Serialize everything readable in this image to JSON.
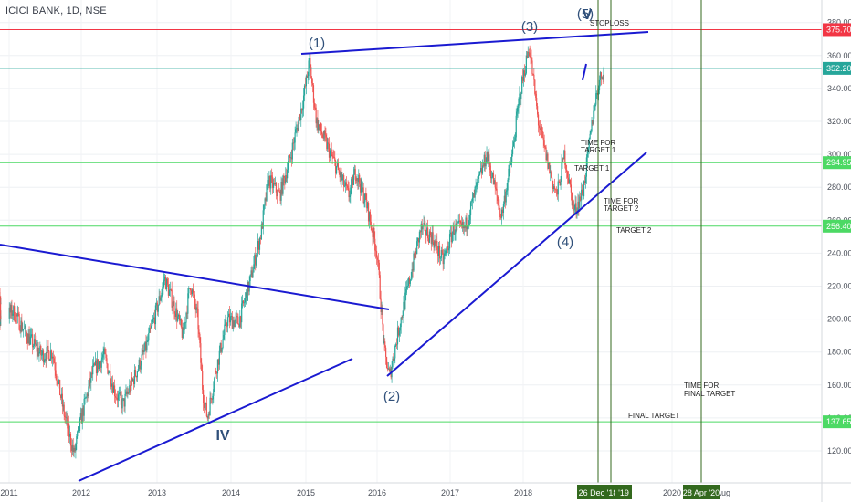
{
  "header": {
    "symbol": "ICICI BANK, 1D, NSE"
  },
  "chart_data": {
    "type": "candlestick",
    "y_ticks": [
      120,
      140,
      160,
      180,
      200,
      220,
      240,
      260,
      280,
      300,
      320,
      340,
      360,
      380
    ],
    "x_ticks": [
      "2011",
      "2012",
      "2013",
      "2014",
      "2015",
      "2016",
      "2017",
      "2018",
      "2020",
      "Aug"
    ],
    "price_levels": [
      {
        "value": 375.7,
        "label": "375.70",
        "color": "#f23645",
        "kind": "stoploss"
      },
      {
        "value": 352.2,
        "label": "352.20",
        "color": "#26a69a",
        "kind": "last-price"
      },
      {
        "value": 294.95,
        "label": "294.95",
        "color": "#4cd964",
        "kind": "target-1"
      },
      {
        "value": 256.4,
        "label": "256.40",
        "color": "#4cd964",
        "kind": "target-2"
      },
      {
        "value": 137.65,
        "label": "137.65",
        "color": "#4cd964",
        "kind": "final-target"
      }
    ],
    "date_markers": [
      "26 Dec '18",
      "'19",
      "28 Apr '20"
    ],
    "wave_labels": [
      "(1)",
      "(2)",
      "(3)",
      "(4)",
      "(5)",
      "V",
      "IV"
    ],
    "annotations": [
      "STOPLOSS",
      "TIME FOR",
      "TARGET 1",
      "TARGET 1",
      "TIME FOR",
      "TARGET 2",
      "TARGET 2",
      "FINAL TARGET",
      "TIME FOR",
      "FINAL TARGET"
    ],
    "price_path": [
      [
        2010.75,
        214
      ],
      [
        2010.9,
        200
      ],
      [
        2011.05,
        205
      ],
      [
        2011.25,
        190
      ],
      [
        2011.45,
        178
      ],
      [
        2011.6,
        180
      ],
      [
        2011.75,
        145
      ],
      [
        2011.82,
        132
      ],
      [
        2011.9,
        118
      ],
      [
        2012.0,
        140
      ],
      [
        2012.15,
        168
      ],
      [
        2012.3,
        178
      ],
      [
        2012.45,
        155
      ],
      [
        2012.55,
        148
      ],
      [
        2012.7,
        165
      ],
      [
        2012.85,
        182
      ],
      [
        2013.05,
        215
      ],
      [
        2013.1,
        225
      ],
      [
        2013.25,
        205
      ],
      [
        2013.35,
        190
      ],
      [
        2013.45,
        222
      ],
      [
        2013.55,
        200
      ],
      [
        2013.62,
        155
      ],
      [
        2013.68,
        140
      ],
      [
        2013.8,
        170
      ],
      [
        2013.95,
        200
      ],
      [
        2014.1,
        198
      ],
      [
        2014.25,
        222
      ],
      [
        2014.4,
        252
      ],
      [
        2014.5,
        285
      ],
      [
        2014.65,
        275
      ],
      [
        2014.8,
        300
      ],
      [
        2014.95,
        330
      ],
      [
        2015.05,
        356
      ],
      [
        2015.15,
        320
      ],
      [
        2015.3,
        305
      ],
      [
        2015.45,
        290
      ],
      [
        2015.6,
        275
      ],
      [
        2015.7,
        290
      ],
      [
        2015.85,
        270
      ],
      [
        2016.0,
        240
      ],
      [
        2016.1,
        180
      ],
      [
        2016.17,
        165
      ],
      [
        2016.3,
        195
      ],
      [
        2016.45,
        225
      ],
      [
        2016.6,
        255
      ],
      [
        2016.75,
        250
      ],
      [
        2016.9,
        235
      ],
      [
        2017.05,
        255
      ],
      [
        2017.2,
        255
      ],
      [
        2017.35,
        278
      ],
      [
        2017.5,
        300
      ],
      [
        2017.6,
        282
      ],
      [
        2017.7,
        262
      ],
      [
        2017.85,
        300
      ],
      [
        2017.95,
        335
      ],
      [
        2018.08,
        366
      ],
      [
        2018.2,
        320
      ],
      [
        2018.3,
        300
      ],
      [
        2018.38,
        285
      ],
      [
        2018.45,
        275
      ],
      [
        2018.55,
        300
      ],
      [
        2018.68,
        265
      ],
      [
        2018.8,
        278
      ],
      [
        2018.88,
        305
      ],
      [
        2018.95,
        330
      ],
      [
        2019.02,
        345
      ],
      [
        2019.08,
        352
      ]
    ]
  }
}
